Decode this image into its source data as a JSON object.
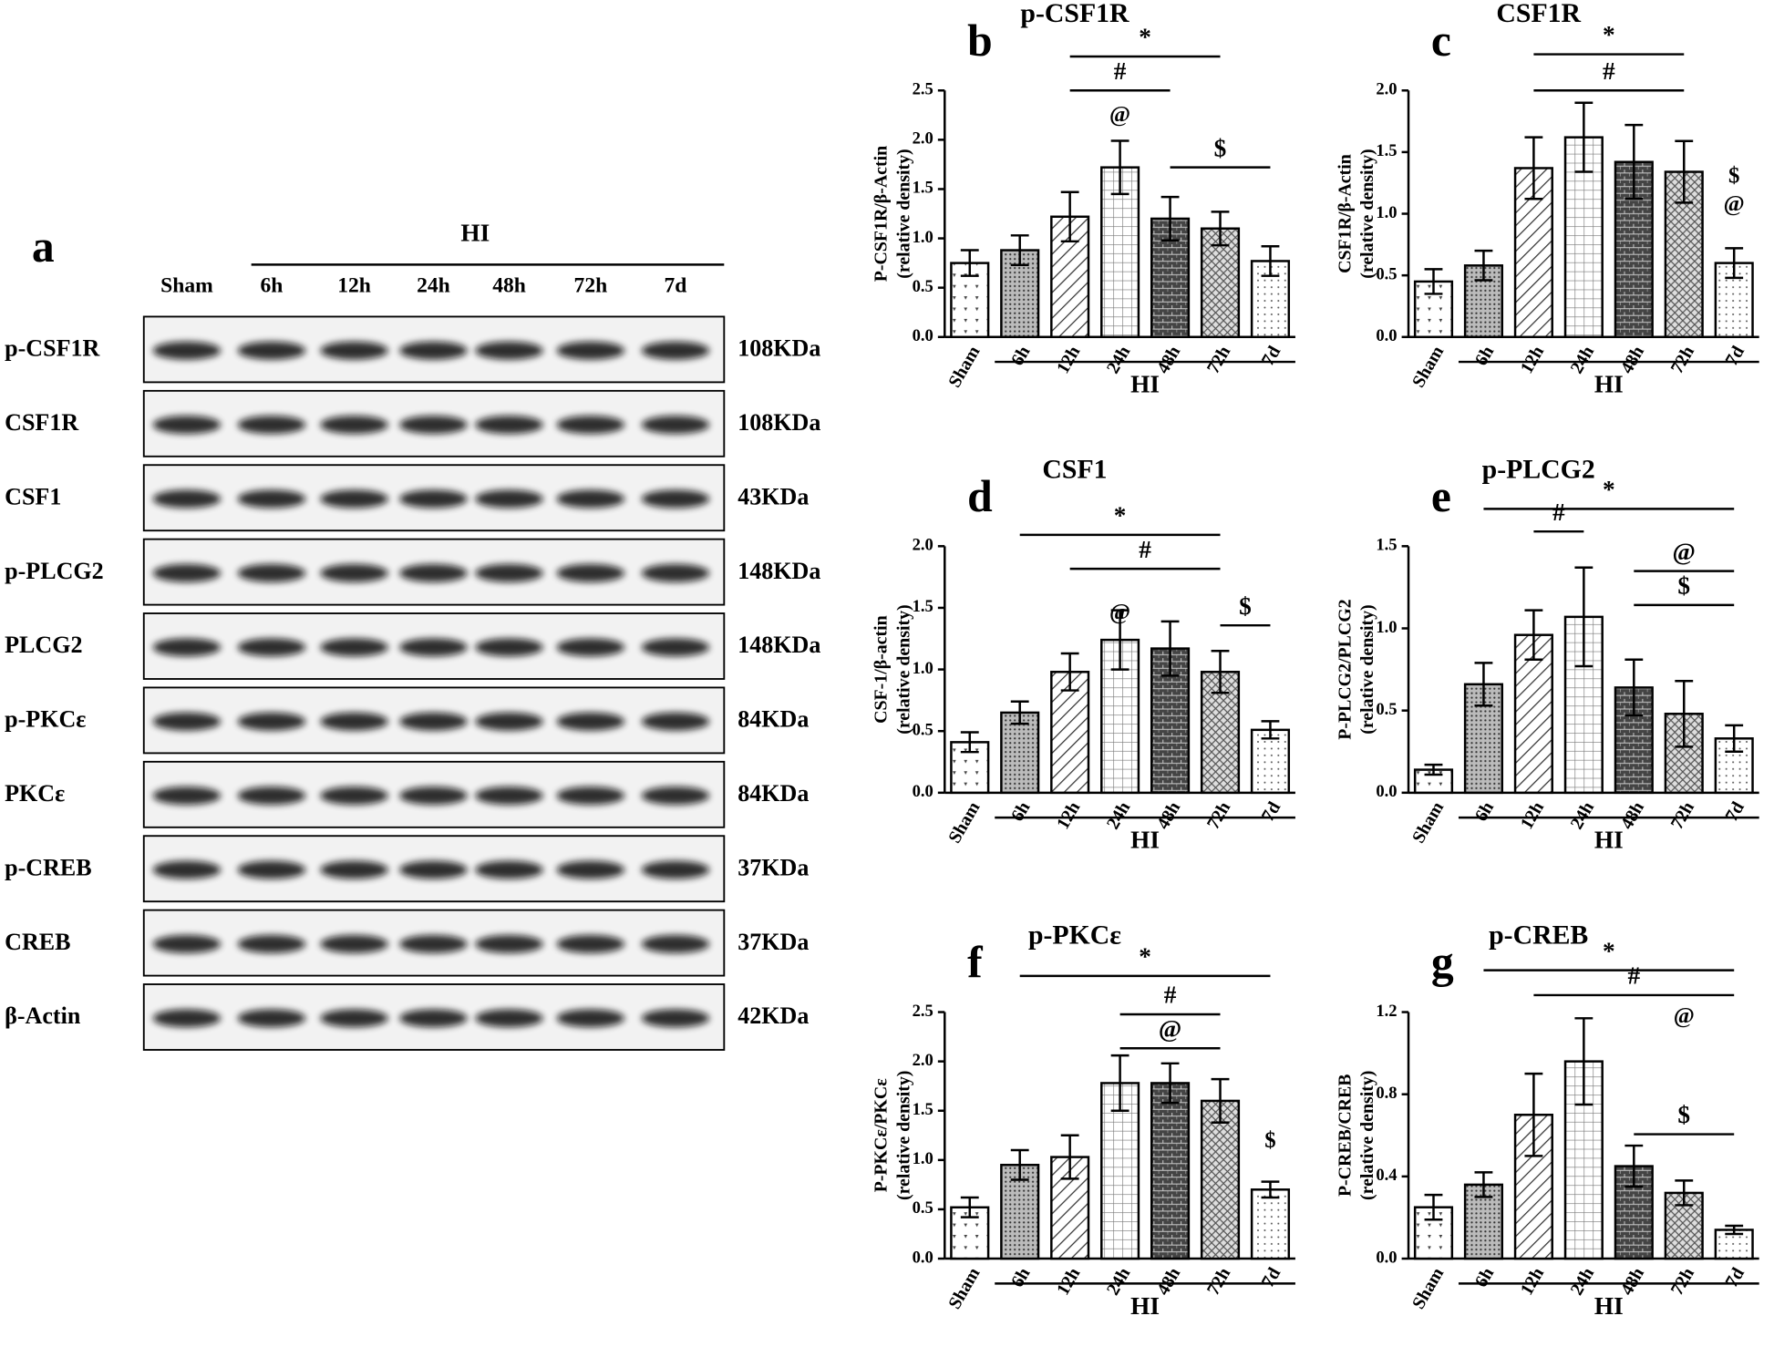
{
  "blot": {
    "panel": "a",
    "group": "HI",
    "lanes": [
      "Sham",
      "6h",
      "12h",
      "24h",
      "48h",
      "72h",
      "7d"
    ],
    "rows": [
      {
        "label": "p-CSF1R",
        "size": "108KDa"
      },
      {
        "label": "CSF1R",
        "size": "108KDa"
      },
      {
        "label": "CSF1",
        "size": "43KDa"
      },
      {
        "label": "p-PLCG2",
        "size": "148KDa"
      },
      {
        "label": "PLCG2",
        "size": "148KDa"
      },
      {
        "label": "p-PKCε",
        "size": "84KDa"
      },
      {
        "label": "PKCε",
        "size": "84KDa"
      },
      {
        "label": "p-CREB",
        "size": "37KDa"
      },
      {
        "label": "CREB",
        "size": "37KDa"
      },
      {
        "label": "β-Actin",
        "size": "42KDa"
      }
    ]
  },
  "chart_data": [
    {
      "type": "bar",
      "panel": "b",
      "title": "p-CSF1R",
      "ylabel": [
        "P-CSF1R/β-Actin",
        "(relative density)"
      ],
      "categories": [
        "Sham",
        "6h",
        "12h",
        "24h",
        "48h",
        "72h",
        "7d"
      ],
      "group": "HI",
      "values": [
        0.75,
        0.88,
        1.22,
        1.72,
        1.2,
        1.1,
        0.77
      ],
      "errors": [
        0.13,
        0.15,
        0.25,
        0.27,
        0.22,
        0.17,
        0.15
      ],
      "ylim": [
        0,
        2.5
      ],
      "yticks": [
        {
          "value": 0,
          "label": "0.0"
        },
        0.5,
        {
          "value": 1,
          "label": "1.0"
        },
        1.5,
        {
          "value": 2,
          "label": "2.0"
        },
        2.5
      ],
      "annotations": [
        "*",
        "#",
        "@",
        "$"
      ]
    },
    {
      "type": "bar",
      "panel": "c",
      "title": "CSF1R",
      "ylabel": [
        "CSF1R/β-Actin",
        "(relative density)"
      ],
      "categories": [
        "Sham",
        "6h",
        "12h",
        "24h",
        "48h",
        "72h",
        "7d"
      ],
      "group": "HI",
      "values": [
        0.45,
        0.58,
        1.37,
        1.62,
        1.42,
        1.34,
        0.6
      ],
      "errors": [
        0.1,
        0.12,
        0.25,
        0.28,
        0.3,
        0.25,
        0.12
      ],
      "ylim": [
        0,
        2
      ],
      "yticks": [
        {
          "value": 0,
          "label": "0.0"
        },
        0.5,
        {
          "value": 1,
          "label": "1.0"
        },
        1.5,
        {
          "value": 2,
          "label": "2.0"
        }
      ],
      "annotations": [
        "*",
        "#",
        "$",
        "@"
      ]
    },
    {
      "type": "bar",
      "panel": "d",
      "title": "CSF1",
      "ylabel": [
        "CSF-1/β-actin",
        "(relative density)"
      ],
      "categories": [
        "Sham",
        "6h",
        "12h",
        "24h",
        "48h",
        "72h",
        "7d"
      ],
      "group": "HI",
      "values": [
        0.41,
        0.65,
        0.98,
        1.24,
        1.17,
        0.98,
        0.51
      ],
      "errors": [
        0.08,
        0.09,
        0.15,
        0.24,
        0.22,
        0.17,
        0.07
      ],
      "ylim": [
        0,
        2
      ],
      "yticks": [
        {
          "value": 0,
          "label": "0.0"
        },
        0.5,
        {
          "value": 1,
          "label": "1.0"
        },
        1.5,
        {
          "value": 2,
          "label": "2.0"
        }
      ],
      "annotations": [
        "*",
        "#",
        "@",
        "$"
      ]
    },
    {
      "type": "bar",
      "panel": "e",
      "title": "p-PLCG2",
      "ylabel": [
        "P-PLCG2/PLCG2",
        "(relative density)"
      ],
      "categories": [
        "Sham",
        "6h",
        "12h",
        "24h",
        "48h",
        "72h",
        "7d"
      ],
      "group": "HI",
      "values": [
        0.14,
        0.66,
        0.96,
        1.07,
        0.64,
        0.48,
        0.33
      ],
      "errors": [
        0.03,
        0.13,
        0.15,
        0.3,
        0.17,
        0.2,
        0.08
      ],
      "ylim": [
        0,
        1.5
      ],
      "yticks": [
        {
          "value": 0,
          "label": "0.0"
        },
        0.5,
        {
          "value": 1,
          "label": "1.0"
        },
        1.5
      ],
      "annotations": [
        "*",
        "#",
        "@",
        "$"
      ]
    },
    {
      "type": "bar",
      "panel": "f",
      "title": "p-PKCε",
      "ylabel": [
        "P-PKCε/PKCε",
        "(relative density)"
      ],
      "categories": [
        "Sham",
        "6h",
        "12h",
        "24h",
        "48h",
        "72h",
        "7d"
      ],
      "group": "HI",
      "values": [
        0.52,
        0.95,
        1.03,
        1.78,
        1.78,
        1.6,
        0.7
      ],
      "errors": [
        0.1,
        0.15,
        0.22,
        0.28,
        0.2,
        0.22,
        0.08
      ],
      "ylim": [
        0,
        2.5
      ],
      "yticks": [
        {
          "value": 0,
          "label": "0.0"
        },
        0.5,
        {
          "value": 1,
          "label": "1.0"
        },
        1.5,
        {
          "value": 2,
          "label": "2.0"
        },
        2.5
      ],
      "annotations": [
        "*",
        "#",
        "@",
        "$"
      ]
    },
    {
      "type": "bar",
      "panel": "g",
      "title": "p-CREB",
      "ylabel": [
        "P-CREB/CREB",
        "(relative density)"
      ],
      "categories": [
        "Sham",
        "6h",
        "12h",
        "24h",
        "48h",
        "72h",
        "7d"
      ],
      "group": "HI",
      "values": [
        0.25,
        0.36,
        0.7,
        0.96,
        0.45,
        0.32,
        0.14
      ],
      "errors": [
        0.06,
        0.06,
        0.2,
        0.21,
        0.1,
        0.06,
        0.02
      ],
      "ylim": [
        0,
        1.2
      ],
      "yticks": [
        {
          "value": 0,
          "label": "0.0"
        },
        0.4,
        0.8,
        1.2
      ],
      "annotations": [
        "*",
        "#",
        "@",
        "$"
      ]
    }
  ]
}
